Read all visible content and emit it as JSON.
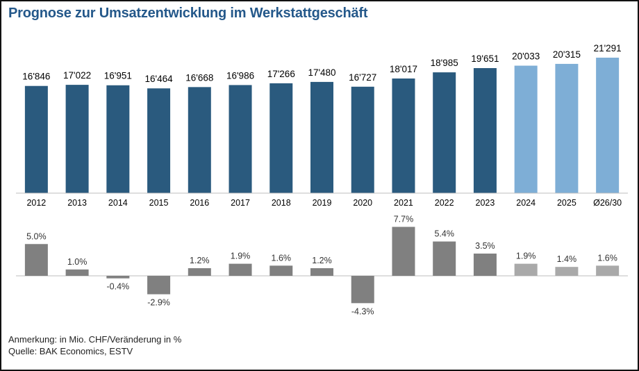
{
  "title": "Prognose zur Umsatzentwicklung im Werkstattgeschäft",
  "notes": {
    "remark": "Anmerkung: in Mio. CHF/Veränderung in %",
    "source": "Quelle: BAK Economics, ESTV"
  },
  "colors": {
    "title": "#24588a",
    "actual_bar": "#2a5a7e",
    "forecast_bar": "#7eaed6",
    "actual_change": "#808080",
    "forecast_change": "#a9a9a9"
  },
  "chart_data": [
    {
      "type": "bar",
      "categories": [
        "2012",
        "2013",
        "2014",
        "2015",
        "2016",
        "2017",
        "2018",
        "2019",
        "2020",
        "2021",
        "2022",
        "2023",
        "2024",
        "2025",
        "Ø26/30"
      ],
      "values": [
        16846,
        17022,
        16951,
        16464,
        16668,
        16986,
        17266,
        17480,
        16727,
        18017,
        18985,
        19651,
        20033,
        20315,
        21291
      ],
      "value_labels": [
        "16'846",
        "17'022",
        "16'951",
        "16'464",
        "16'668",
        "16'986",
        "17'266",
        "17'480",
        "16'727",
        "18'017",
        "18'985",
        "19'651",
        "20'033",
        "20'315",
        "21'291"
      ],
      "forecast_from_index": 12,
      "ylim": [
        0,
        21291
      ],
      "grid": false
    },
    {
      "type": "bar",
      "categories": [
        "2012",
        "2013",
        "2014",
        "2015",
        "2016",
        "2017",
        "2018",
        "2019",
        "2020",
        "2021",
        "2022",
        "2023",
        "2024",
        "2025",
        "Ø26/30"
      ],
      "values": [
        5.0,
        1.0,
        -0.4,
        -2.9,
        1.2,
        1.9,
        1.6,
        1.2,
        -4.3,
        7.7,
        5.4,
        3.5,
        1.9,
        1.4,
        1.6
      ],
      "value_labels": [
        "5.0%",
        "1.0%",
        "-0.4%",
        "-2.9%",
        "1.2%",
        "1.9%",
        "1.6%",
        "1.2%",
        "-4.3%",
        "7.7%",
        "5.4%",
        "3.5%",
        "1.9%",
        "1.4%",
        "1.6%"
      ],
      "forecast_from_index": 12,
      "grid": false
    }
  ]
}
